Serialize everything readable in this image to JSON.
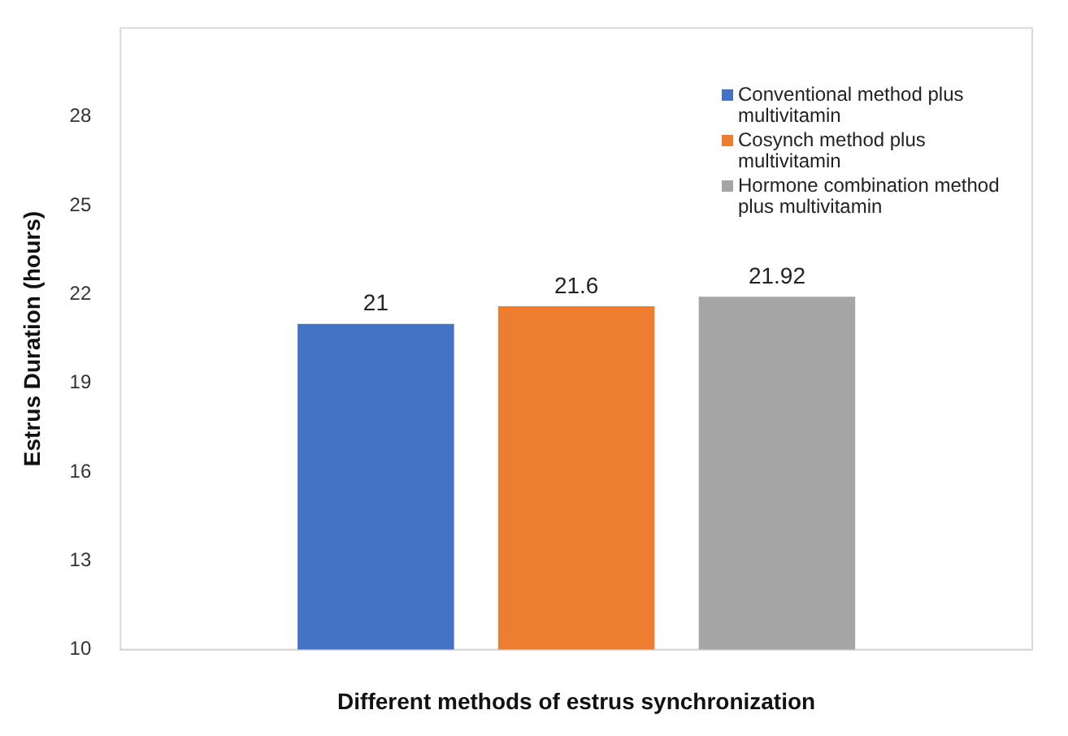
{
  "chart_data": {
    "type": "bar",
    "xlabel": "Different methods of estrus synchronization",
    "ylabel": "Estrus Duration (hours)",
    "categories": [
      null
    ],
    "series": [
      {
        "name": "Conventional method plus multivitamin",
        "color": "#4472c4",
        "values": [
          21
        ]
      },
      {
        "name": "Cosynch method plus multivitamin",
        "color": "#ed7d31",
        "values": [
          21.6
        ]
      },
      {
        "name": "Hormone combination method plus multivitamin",
        "color": "#a5a5a5",
        "values": [
          21.92
        ]
      }
    ],
    "ylim": [
      10,
      31
    ],
    "yticks": [
      10,
      13,
      16,
      19,
      22,
      25,
      28
    ],
    "grid": false,
    "legend": "top right",
    "data_labels": true
  }
}
